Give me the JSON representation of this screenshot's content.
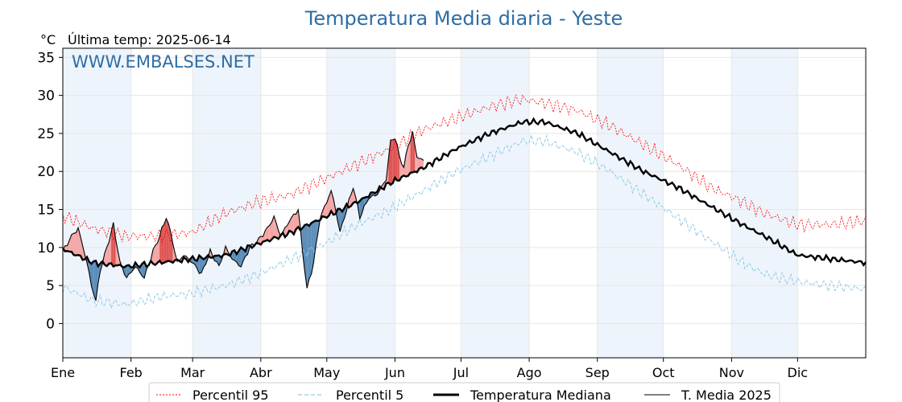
{
  "chart_data": {
    "type": "line",
    "title": "Temperatura Media diaria - Yeste",
    "subtitle": "Última temp: 2025-06-14",
    "ylabel": "°C",
    "watermark": "WWW.EMBALSES.NET",
    "ylim": [
      -4.5,
      36.2
    ],
    "yticks": [
      0,
      5,
      10,
      15,
      20,
      25,
      30,
      35
    ],
    "xlim": [
      1,
      366
    ],
    "month_ticks": [
      {
        "label": "Ene",
        "day": 1
      },
      {
        "label": "Feb",
        "day": 32
      },
      {
        "label": "Mar",
        "day": 60
      },
      {
        "label": "Abr",
        "day": 91
      },
      {
        "label": "May",
        "day": 121
      },
      {
        "label": "Jun",
        "day": 152
      },
      {
        "label": "Jul",
        "day": 182
      },
      {
        "label": "Ago",
        "day": 213
      },
      {
        "label": "Sep",
        "day": 244
      },
      {
        "label": "Oct",
        "day": 274
      },
      {
        "label": "Nov",
        "day": 305
      },
      {
        "label": "Dic",
        "day": 335
      }
    ],
    "shaded_months": [
      "Ene",
      "Mar",
      "May",
      "Jul",
      "Sep",
      "Nov"
    ],
    "grid": true,
    "legend": {
      "placement": "bottom",
      "entries": [
        "Percentil 95",
        "Percentil 5",
        "Temperatura Mediana",
        "T. Media 2025"
      ]
    },
    "colors": {
      "p95": "#ff0000",
      "p5": "#8ecae6",
      "median": "#000000",
      "year": "#000000",
      "above_fill": "#f4a6a6",
      "above_fill_strong": "#e05555",
      "below_fill": "#5b8db8",
      "month_shade": "#eef4fb",
      "title": "#2e6da4"
    },
    "series": [
      {
        "name": "Percentil 95",
        "style": "dotted",
        "points": [
          [
            1,
            14.2
          ],
          [
            15,
            12.5
          ],
          [
            30,
            11.5
          ],
          [
            45,
            11.5
          ],
          [
            60,
            12
          ],
          [
            75,
            14.5
          ],
          [
            90,
            16
          ],
          [
            105,
            17
          ],
          [
            120,
            19
          ],
          [
            135,
            21
          ],
          [
            150,
            23
          ],
          [
            165,
            25.5
          ],
          [
            180,
            27
          ],
          [
            195,
            28.5
          ],
          [
            210,
            29.5
          ],
          [
            220,
            29
          ],
          [
            235,
            28
          ],
          [
            250,
            26
          ],
          [
            265,
            23.5
          ],
          [
            280,
            21
          ],
          [
            295,
            18
          ],
          [
            310,
            16
          ],
          [
            320,
            14.5
          ],
          [
            335,
            13
          ],
          [
            350,
            13
          ],
          [
            366,
            13.5
          ]
        ]
      },
      {
        "name": "Percentil 5",
        "style": "dashed",
        "points": [
          [
            1,
            4.8
          ],
          [
            15,
            3
          ],
          [
            30,
            2.5
          ],
          [
            45,
            3.5
          ],
          [
            60,
            4
          ],
          [
            75,
            5
          ],
          [
            90,
            6.5
          ],
          [
            105,
            8.5
          ],
          [
            120,
            10.5
          ],
          [
            135,
            13
          ],
          [
            150,
            15
          ],
          [
            165,
            17.5
          ],
          [
            180,
            20
          ],
          [
            195,
            22
          ],
          [
            210,
            24
          ],
          [
            220,
            24
          ],
          [
            235,
            22.5
          ],
          [
            250,
            20
          ],
          [
            265,
            17
          ],
          [
            280,
            14
          ],
          [
            295,
            11
          ],
          [
            310,
            8
          ],
          [
            320,
            6.5
          ],
          [
            335,
            5.5
          ],
          [
            350,
            5
          ],
          [
            366,
            4.5
          ]
        ]
      },
      {
        "name": "Temperatura Mediana",
        "style": "solid-thick",
        "points": [
          [
            1,
            9.8
          ],
          [
            15,
            8
          ],
          [
            30,
            7.5
          ],
          [
            45,
            8
          ],
          [
            60,
            8.5
          ],
          [
            75,
            9
          ],
          [
            90,
            10.5
          ],
          [
            105,
            12
          ],
          [
            120,
            14
          ],
          [
            135,
            16
          ],
          [
            150,
            18.5
          ],
          [
            165,
            20.5
          ],
          [
            180,
            23
          ],
          [
            195,
            25
          ],
          [
            210,
            26.5
          ],
          [
            220,
            26.5
          ],
          [
            235,
            25
          ],
          [
            250,
            22.5
          ],
          [
            265,
            20
          ],
          [
            280,
            18
          ],
          [
            295,
            15.5
          ],
          [
            310,
            13
          ],
          [
            320,
            11.5
          ],
          [
            335,
            9
          ],
          [
            350,
            8.5
          ],
          [
            366,
            8
          ]
        ]
      },
      {
        "name": "T. Media 2025",
        "style": "solid-thin",
        "points": [
          [
            1,
            9.5
          ],
          [
            5,
            11.5
          ],
          [
            8,
            12.5
          ],
          [
            12,
            8
          ],
          [
            14,
            5
          ],
          [
            16,
            3
          ],
          [
            18,
            7
          ],
          [
            22,
            11
          ],
          [
            24,
            13
          ],
          [
            27,
            8
          ],
          [
            30,
            6
          ],
          [
            34,
            7.5
          ],
          [
            38,
            6
          ],
          [
            42,
            9.5
          ],
          [
            45,
            11.5
          ],
          [
            48,
            14
          ],
          [
            50,
            12
          ],
          [
            53,
            8
          ],
          [
            56,
            9
          ],
          [
            60,
            8
          ],
          [
            64,
            6.5
          ],
          [
            68,
            9.5
          ],
          [
            72,
            7.5
          ],
          [
            75,
            10
          ],
          [
            78,
            8.5
          ],
          [
            82,
            7.5
          ],
          [
            86,
            10
          ],
          [
            90,
            11
          ],
          [
            94,
            12.5
          ],
          [
            97,
            14
          ],
          [
            100,
            11.5
          ],
          [
            104,
            13.5
          ],
          [
            108,
            15
          ],
          [
            110,
            9.5
          ],
          [
            112,
            4.5
          ],
          [
            115,
            8
          ],
          [
            118,
            14
          ],
          [
            121,
            16
          ],
          [
            123,
            17.5
          ],
          [
            125,
            15
          ],
          [
            127,
            12
          ],
          [
            130,
            15
          ],
          [
            133,
            18
          ],
          [
            136,
            14
          ],
          [
            140,
            16.5
          ],
          [
            144,
            17
          ],
          [
            148,
            19
          ],
          [
            150,
            24
          ],
          [
            152,
            24.5
          ],
          [
            154,
            22
          ],
          [
            156,
            20.5
          ],
          [
            158,
            23.5
          ],
          [
            160,
            25
          ],
          [
            162,
            22
          ],
          [
            164,
            21.5
          ],
          [
            165,
            21.5
          ]
        ]
      }
    ]
  }
}
